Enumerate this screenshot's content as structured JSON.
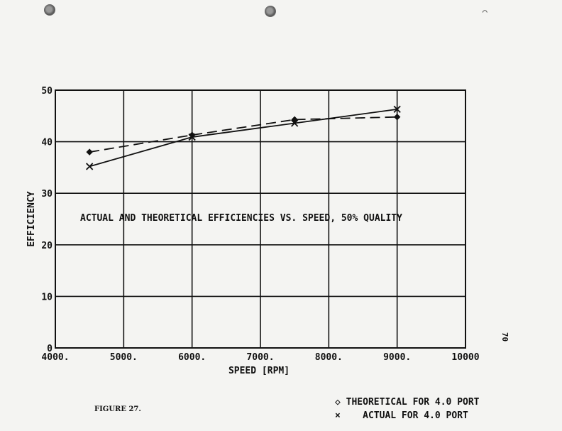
{
  "chart_data": {
    "type": "line",
    "title": "ACTUAL AND THEORETICAL EFFICIENCIES VS. SPEED, 50% QUALITY",
    "xlabel": "SPEED [RPM]",
    "ylabel": "EFFICIENCY",
    "xlim": [
      4000,
      10000
    ],
    "ylim": [
      0,
      50
    ],
    "x_ticks": [
      "4000.",
      "5000.",
      "6000.",
      "7000.",
      "8000.",
      "9000.",
      "10000"
    ],
    "y_ticks": [
      "0",
      "10",
      "20",
      "30",
      "40",
      "50"
    ],
    "grid": true,
    "legend_position": "bottom-right",
    "series": [
      {
        "name": "THEORETICAL FOR 4.0 PORT",
        "marker": "diamond",
        "line": "dashed",
        "x": [
          4500,
          6000,
          7500,
          9000
        ],
        "y": [
          38.0,
          41.3,
          44.3,
          44.8
        ]
      },
      {
        "name": "ACTUAL FOR 4.0 PORT",
        "marker": "x",
        "line": "solid",
        "x": [
          4500,
          6000,
          7500,
          9000
        ],
        "y": [
          35.2,
          40.9,
          43.6,
          46.3
        ]
      }
    ]
  },
  "figure_caption": "FIGURE 27.",
  "page_number": "70",
  "legend": {
    "theoretical_symbol": "◇",
    "theoretical_label": "THEORETICAL FOR 4.0 PORT",
    "actual_symbol": "×",
    "actual_label": "ACTUAL FOR 4.0 PORT"
  },
  "colors": {
    "ink": "#111111",
    "paper": "#f4f4f2"
  }
}
